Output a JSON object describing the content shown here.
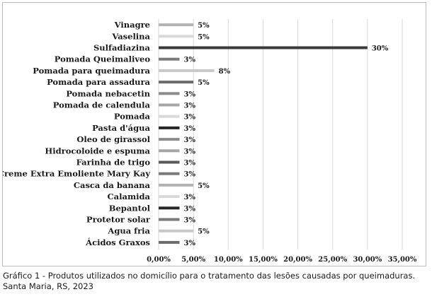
{
  "chart_data": {
    "type": "bar",
    "orientation": "horizontal",
    "categories": [
      "Vinagre",
      "Vaselina",
      "Sulfadiazina",
      "Pomada Queimaliveo",
      "Pomada para queimadura",
      "Pomada para assadura",
      "Pomada nebacetin",
      "Pomada de calendula",
      "Pomada",
      "Pasta d'água",
      "Oleo de girassol",
      "Hidrocoloide e espuma",
      "Farinha de trigo",
      "Creme Extra Emoliente Mary Kay",
      "Casca da banana",
      "Calamida",
      "Bepantol",
      "Protetor solar",
      "Agua fria",
      "Ácidos Graxos"
    ],
    "values": [
      5,
      5,
      30,
      3,
      8,
      5,
      3,
      3,
      3,
      3,
      3,
      3,
      3,
      3,
      5,
      3,
      3,
      3,
      5,
      3
    ],
    "value_labels": [
      "5%",
      "5%",
      "30%",
      "3%",
      "8%",
      "5%",
      "3%",
      "3%",
      "3%",
      "3%",
      "3%",
      "3%",
      "3%",
      "3%",
      "5%",
      "3%",
      "3%",
      "3%",
      "5%",
      "3%"
    ],
    "colors": [
      "#b3b3b3",
      "#d9d9d9",
      "#3a3a3a",
      "#7a7a7a",
      "#c8c8c8",
      "#6b6b6b",
      "#8c8c8c",
      "#a6a6a6",
      "#d9d9d9",
      "#262626",
      "#8c8c8c",
      "#a6a6a6",
      "#5a5a5a",
      "#7a7a7a",
      "#b3b3b3",
      "#d9d9d9",
      "#262626",
      "#7a7a7a",
      "#c8c8c8",
      "#6b6b6b"
    ],
    "xlim": [
      0,
      35
    ],
    "x_ticks": [
      "0,00%",
      "5,00%",
      "10,00%",
      "15,00%",
      "20,00%",
      "25,00%",
      "30,00%",
      "35,00%"
    ],
    "grid": "vertical",
    "legend": "none",
    "title": "",
    "xlabel": "",
    "ylabel": ""
  },
  "caption": "Gráfico 1 - Produtos utilizados no domicílio para o tratamento das lesões causadas por queimaduras. Santa Maria, RS, 2023"
}
